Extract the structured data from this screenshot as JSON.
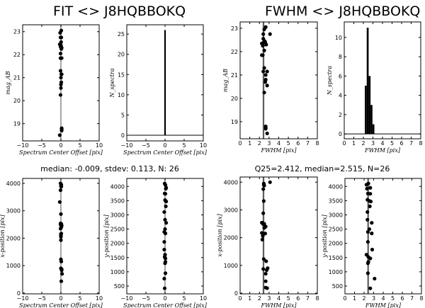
{
  "titles": {
    "fit": "FIT <> J8HQBBOKQ",
    "fwhm": "FWHM <> J8HQBBOKQ"
  },
  "stats": {
    "fit": "median: -0.009, stdev: 0.113, N: 26",
    "fwhm": "Q25=2.412, median=2.515, N=26"
  },
  "chart_data": [
    {
      "id": "fit-mag",
      "type": "scatter",
      "xlabel": "Spectrum Center Offset [pix]",
      "ylabel": "mag_AB",
      "xlim": [
        -10,
        10
      ],
      "ylim": [
        18.25,
        23.3
      ],
      "xticks": [
        -10,
        -5,
        0,
        5,
        10
      ],
      "yticks": [
        19,
        20,
        21,
        22,
        23
      ],
      "vline": -0.009,
      "points": [
        [
          0.1,
          23.05
        ],
        [
          -0.2,
          22.95
        ],
        [
          -0.1,
          22.75
        ],
        [
          0.1,
          22.75
        ],
        [
          0.05,
          22.55
        ],
        [
          -0.3,
          22.45
        ],
        [
          0.0,
          22.4
        ],
        [
          -0.1,
          22.35
        ],
        [
          0.2,
          22.3
        ],
        [
          0.1,
          22.25
        ],
        [
          -0.1,
          22.05
        ],
        [
          -0.1,
          21.85
        ],
        [
          0.2,
          21.85
        ],
        [
          -0.1,
          21.3
        ],
        [
          0.2,
          21.15
        ],
        [
          0.1,
          21.15
        ],
        [
          0.0,
          21.0
        ],
        [
          0.1,
          20.8
        ],
        [
          0.0,
          20.7
        ],
        [
          0.0,
          20.55
        ],
        [
          -0.1,
          20.25
        ],
        [
          0.2,
          18.8
        ],
        [
          0.2,
          18.75
        ],
        [
          0.2,
          18.7
        ],
        [
          -0.3,
          18.5
        ],
        [
          0.0,
          22.4
        ]
      ]
    },
    {
      "id": "fit-hist",
      "type": "bar",
      "xlabel": "Spectrum Center Offset [pix]",
      "ylabel": "N_spectra",
      "xlim": [
        -10,
        10
      ],
      "ylim": [
        -1.4,
        27.3
      ],
      "xticks": [
        -10,
        -5,
        0,
        5,
        10
      ],
      "yticks": [
        0,
        5,
        10,
        15,
        20,
        25
      ],
      "bins": [
        [
          -0.2,
          0.2,
          26
        ]
      ]
    },
    {
      "id": "fwhm-mag",
      "type": "scatter",
      "xlabel": "FWHM [pix]",
      "ylabel": "mag_AB",
      "xlim": [
        0,
        8
      ],
      "ylim": [
        18.27,
        23.27
      ],
      "xticks": [
        0,
        1,
        2,
        3,
        4,
        5,
        6,
        7,
        8
      ],
      "yticks": [
        19,
        20,
        21,
        22,
        23
      ],
      "band": [
        2.33,
        2.5
      ],
      "points": [
        [
          2.65,
          23.05
        ],
        [
          2.5,
          22.95
        ],
        [
          3.1,
          22.75
        ],
        [
          2.4,
          22.75
        ],
        [
          2.4,
          22.55
        ],
        [
          2.55,
          22.45
        ],
        [
          2.6,
          22.4
        ],
        [
          2.25,
          22.35
        ],
        [
          2.7,
          22.3
        ],
        [
          2.35,
          22.25
        ],
        [
          2.5,
          22.05
        ],
        [
          2.25,
          21.85
        ],
        [
          2.35,
          21.85
        ],
        [
          2.5,
          21.3
        ],
        [
          2.4,
          21.15
        ],
        [
          2.8,
          21.15
        ],
        [
          2.65,
          21.0
        ],
        [
          2.65,
          20.8
        ],
        [
          2.6,
          20.7
        ],
        [
          2.8,
          20.55
        ],
        [
          2.5,
          20.25
        ],
        [
          2.65,
          18.8
        ],
        [
          2.65,
          18.75
        ],
        [
          2.65,
          18.7
        ],
        [
          2.8,
          18.5
        ],
        [
          2.45,
          22.4
        ]
      ]
    },
    {
      "id": "fwhm-hist",
      "type": "bar",
      "xlabel": "FWHM [pix]",
      "ylabel": "N_spectra",
      "xlim": [
        0,
        8
      ],
      "ylim": [
        -0.5,
        11.6
      ],
      "xticks": [
        0,
        1,
        2,
        3,
        4,
        5,
        6,
        7,
        8
      ],
      "yticks": [
        0,
        2,
        4,
        6,
        8,
        10
      ],
      "bins": [
        [
          2.15,
          2.35,
          5
        ],
        [
          2.35,
          2.55,
          11
        ],
        [
          2.55,
          2.75,
          6
        ],
        [
          2.75,
          2.95,
          3
        ],
        [
          2.95,
          3.15,
          1
        ]
      ]
    },
    {
      "id": "fit-xpos",
      "type": "scatter",
      "xlabel": "Spectrum Center Offset [pix]",
      "ylabel": "x-position [pix]",
      "xlim": [
        -10,
        10
      ],
      "ylim": [
        -30,
        4180
      ],
      "xticks": [
        -10,
        -5,
        0,
        5,
        10
      ],
      "yticks": [
        0,
        1000,
        2000,
        3000,
        4000
      ],
      "vline": -0.009,
      "points": [
        [
          -0.1,
          4000
        ],
        [
          0.1,
          3950
        ],
        [
          0.0,
          3900
        ],
        [
          0.1,
          3880
        ],
        [
          -0.1,
          3750
        ],
        [
          -0.3,
          3320
        ],
        [
          0.0,
          2880
        ],
        [
          -0.1,
          2540
        ],
        [
          0.1,
          2520
        ],
        [
          -0.1,
          2500
        ],
        [
          0.0,
          2480
        ],
        [
          0.2,
          2460
        ],
        [
          0.1,
          2400
        ],
        [
          -0.1,
          2350
        ],
        [
          0.1,
          2170
        ],
        [
          0.0,
          2150
        ],
        [
          0.0,
          2100
        ],
        [
          0.0,
          2050
        ],
        [
          0.0,
          1930
        ],
        [
          0.0,
          1230
        ],
        [
          0.1,
          1150
        ],
        [
          0.0,
          900
        ],
        [
          0.2,
          870
        ],
        [
          0.2,
          830
        ],
        [
          0.3,
          700
        ],
        [
          0.1,
          430
        ]
      ]
    },
    {
      "id": "fit-ypos",
      "type": "scatter",
      "xlabel": "Spectrum Center Offset [pix]",
      "ylabel": "y-position [pix]",
      "xlim": [
        -10,
        10
      ],
      "ylim": [
        226,
        4280
      ],
      "xticks": [
        -10,
        -5,
        0,
        5,
        10
      ],
      "yticks": [
        500,
        1000,
        1500,
        2000,
        2500,
        3000,
        3500,
        4000
      ],
      "vline": -0.009,
      "points": [
        [
          -0.1,
          4100
        ],
        [
          0.1,
          4050
        ],
        [
          0.3,
          3950
        ],
        [
          0.2,
          3920
        ],
        [
          -0.1,
          3750
        ],
        [
          0.1,
          3740
        ],
        [
          0.0,
          3520
        ],
        [
          0.1,
          3500
        ],
        [
          0.3,
          3470
        ],
        [
          0.2,
          3300
        ],
        [
          -0.2,
          3100
        ],
        [
          0.0,
          2830
        ],
        [
          0.3,
          2720
        ],
        [
          0.0,
          2500
        ],
        [
          -0.2,
          2400
        ],
        [
          0.1,
          2350
        ],
        [
          -0.2,
          2050
        ],
        [
          -0.2,
          1780
        ],
        [
          0.0,
          1600
        ],
        [
          -0.1,
          1520
        ],
        [
          0.1,
          1470
        ],
        [
          0.1,
          1350
        ],
        [
          0.0,
          1300
        ],
        [
          0.1,
          950
        ],
        [
          -0.2,
          760
        ],
        [
          -0.1,
          420
        ]
      ]
    },
    {
      "id": "fwhm-xpos",
      "type": "scatter",
      "xlabel": "FWHM [pix]",
      "ylabel": "x-position [pix]",
      "xlim": [
        0,
        8
      ],
      "ylim": [
        -25,
        4186
      ],
      "xticks": [
        0,
        1,
        2,
        3,
        4,
        5,
        6,
        7,
        8
      ],
      "yticks": [
        0,
        1000,
        2000,
        3000,
        4000
      ],
      "band": [
        2.33,
        2.5
      ],
      "points": [
        [
          3.1,
          4000
        ],
        [
          2.45,
          3950
        ],
        [
          2.45,
          3900
        ],
        [
          2.5,
          3880
        ],
        [
          2.4,
          3750
        ],
        [
          2.45,
          3320
        ],
        [
          2.4,
          2880
        ],
        [
          2.25,
          2540
        ],
        [
          2.35,
          2520
        ],
        [
          2.5,
          2500
        ],
        [
          2.4,
          2480
        ],
        [
          2.65,
          2400
        ],
        [
          2.5,
          2350
        ],
        [
          2.25,
          2170
        ],
        [
          2.6,
          2150
        ],
        [
          2.35,
          2060
        ],
        [
          2.3,
          1930
        ],
        [
          2.45,
          1230
        ],
        [
          2.7,
          1150
        ],
        [
          2.85,
          900
        ],
        [
          2.4,
          870
        ],
        [
          2.75,
          830
        ],
        [
          2.65,
          700
        ],
        [
          2.65,
          430
        ],
        [
          2.65,
          200
        ],
        [
          2.8,
          180
        ]
      ]
    },
    {
      "id": "fwhm-ypos",
      "type": "scatter",
      "xlabel": "FWHM [pix]",
      "ylabel": "y-position [pix]",
      "xlim": [
        0,
        8
      ],
      "ylim": [
        226,
        4280
      ],
      "xticks": [
        0,
        1,
        2,
        3,
        4,
        5,
        6,
        7,
        8
      ],
      "yticks": [
        500,
        1000,
        1500,
        2000,
        2500,
        3000,
        3500,
        4000
      ],
      "band": [
        2.33,
        2.5
      ],
      "points": [
        [
          2.45,
          4100
        ],
        [
          2.25,
          4060
        ],
        [
          2.65,
          3950
        ],
        [
          2.3,
          3920
        ],
        [
          2.4,
          3750
        ],
        [
          2.65,
          3740
        ],
        [
          2.35,
          3530
        ],
        [
          2.55,
          3490
        ],
        [
          2.7,
          3470
        ],
        [
          2.6,
          3300
        ],
        [
          2.35,
          3100
        ],
        [
          2.35,
          2830
        ],
        [
          2.8,
          2720
        ],
        [
          2.55,
          2500
        ],
        [
          2.4,
          2400
        ],
        [
          2.8,
          2350
        ],
        [
          2.4,
          2050
        ],
        [
          2.85,
          1780
        ],
        [
          2.25,
          1600
        ],
        [
          2.45,
          1520
        ],
        [
          2.65,
          1470
        ],
        [
          2.45,
          1350
        ],
        [
          2.4,
          1300
        ],
        [
          2.4,
          950
        ],
        [
          3.1,
          760
        ],
        [
          2.65,
          420
        ]
      ]
    }
  ]
}
